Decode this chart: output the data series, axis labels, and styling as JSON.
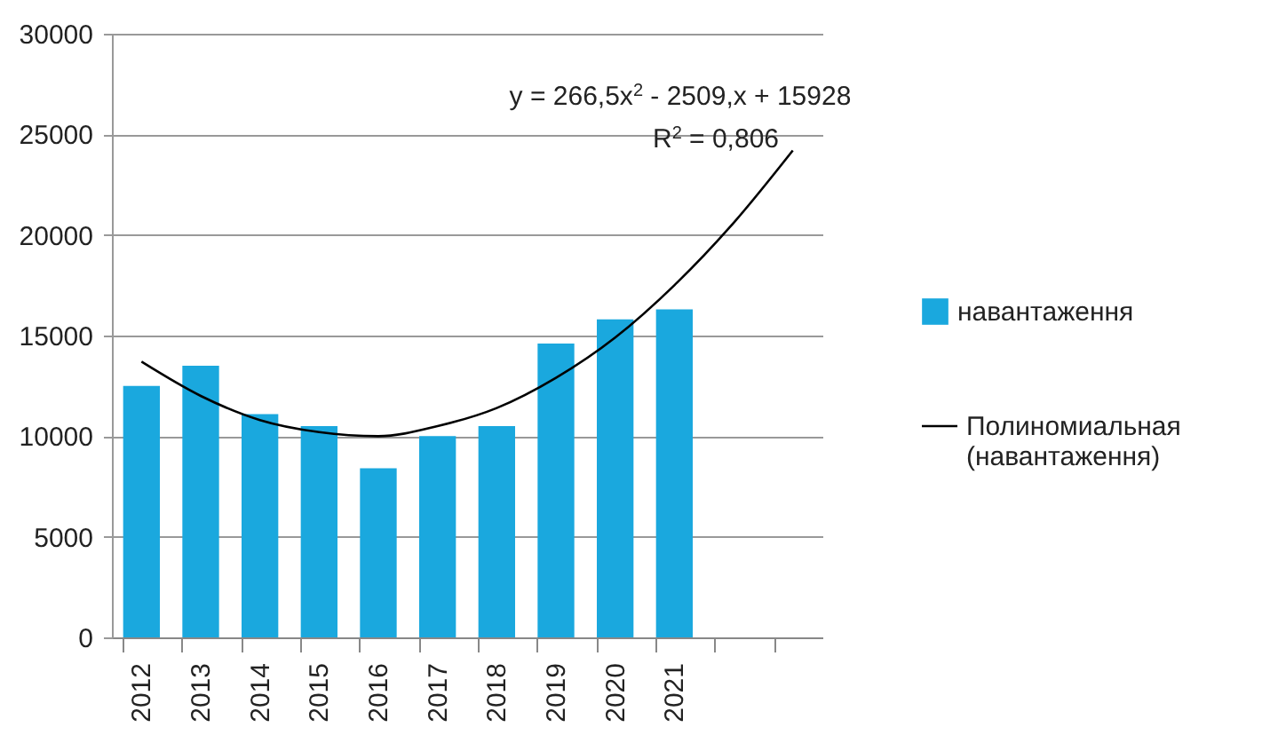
{
  "chart_data": {
    "type": "bar",
    "categories": [
      "2012",
      "2013",
      "2014",
      "2015",
      "2016",
      "2017",
      "2018",
      "2019",
      "2020",
      "2021",
      null,
      null
    ],
    "series": [
      {
        "name": "навантаження",
        "color": "#1aa8de",
        "values": [
          12500,
          13500,
          11100,
          10500,
          8400,
          10000,
          10500,
          14600,
          15800,
          16300,
          null,
          null
        ]
      },
      {
        "name": "Полиномиальная (навантаження)",
        "type": "line",
        "color": "#000000",
        "values": [
          13700,
          12000,
          10800,
          10200,
          10000,
          10500,
          11400,
          12900,
          14900,
          17500,
          20600,
          24200
        ]
      }
    ],
    "ylim": [
      0,
      30000
    ],
    "yticks": [
      0,
      5000,
      10000,
      15000,
      20000,
      25000,
      30000
    ],
    "grid": "y",
    "legend": "right",
    "annotations": [
      "y = 266,5x$^{2}$ - 2509,x + 15928",
      "R$^{2}$ = 0,806"
    ]
  }
}
